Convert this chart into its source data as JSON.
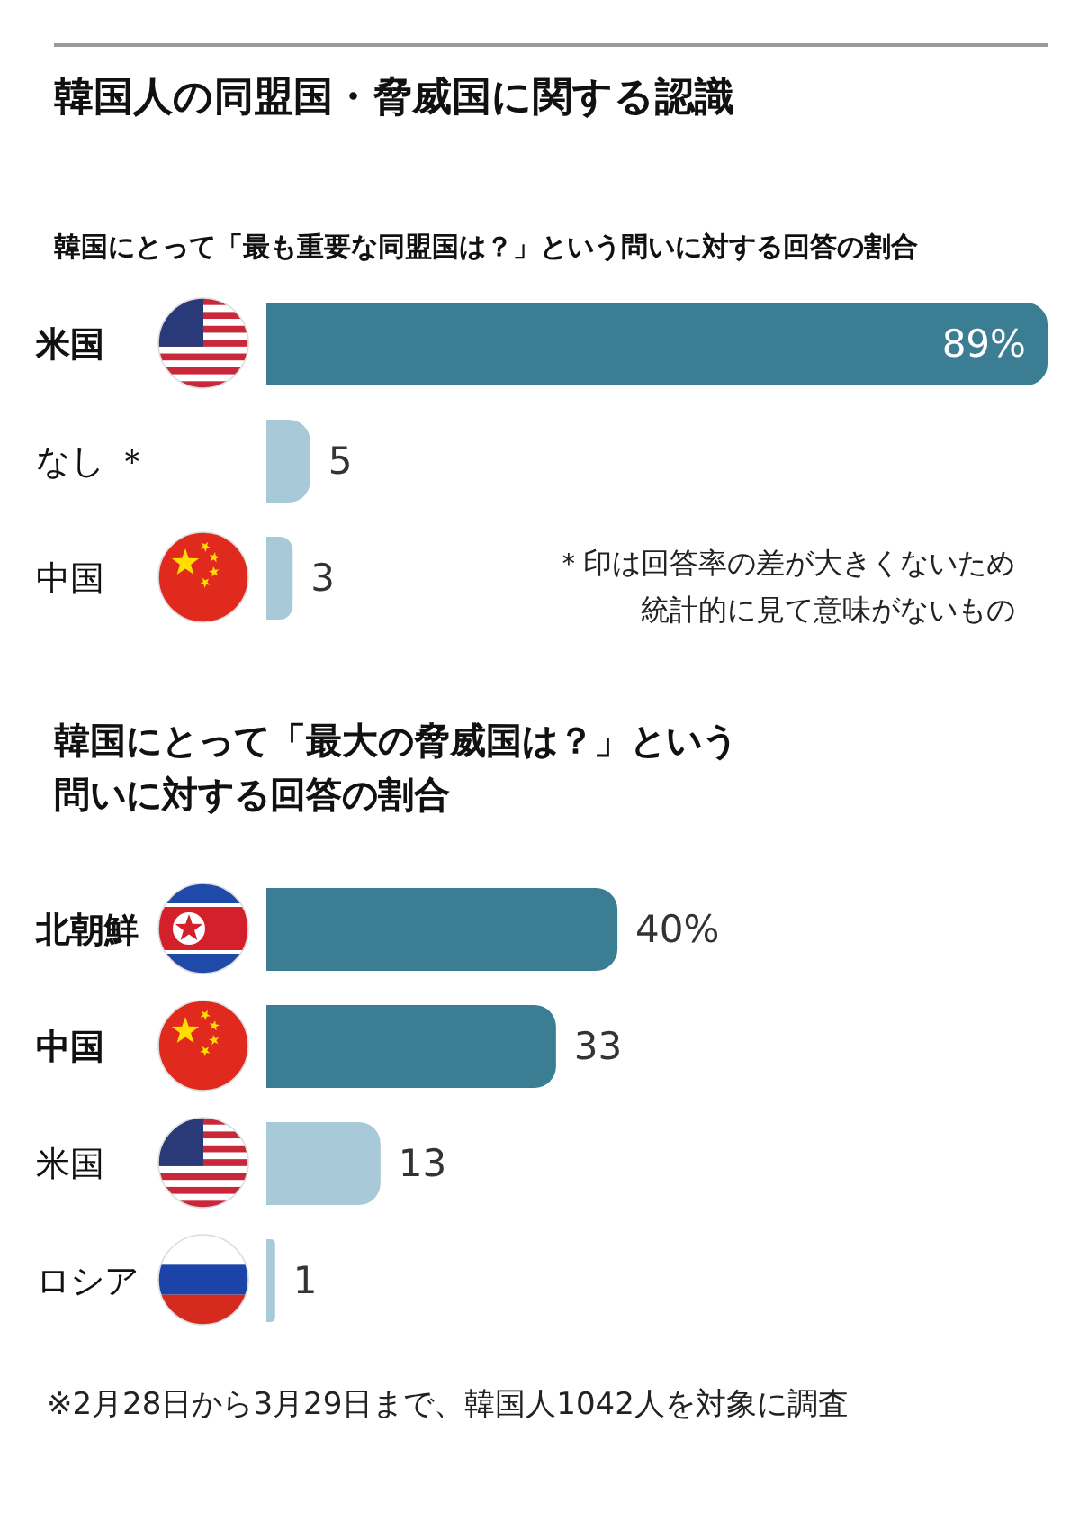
{
  "chart_data": [
    {
      "type": "bar",
      "orientation": "horizontal",
      "title": "韓国人の同盟国・脅威国に関する認識",
      "subtitle": "韓国にとって「最も重要な同盟国は？」という問いに対する回答の割合",
      "categories": [
        "米国",
        "なし ＊",
        "中国"
      ],
      "values": [
        89,
        5,
        3
      ],
      "colors": [
        "#3b7d93",
        "#a8cad8",
        "#a8cad8"
      ],
      "value_labels": [
        "89%",
        "5",
        "3"
      ],
      "annotations": [
        "＊印は回答率の差が大きくないため統計的に見て意味がないもの"
      ]
    },
    {
      "type": "bar",
      "orientation": "horizontal",
      "title": "韓国にとって「最大の脅威国は？」という問いに対する回答の割合",
      "categories": [
        "北朝鮮",
        "中国",
        "米国",
        "ロシア"
      ],
      "values": [
        40,
        33,
        13,
        1
      ],
      "colors": [
        "#3b7d93",
        "#3b7d93",
        "#a8cad8",
        "#a8cad8"
      ],
      "value_labels": [
        "40%",
        "33",
        "13",
        "1"
      ],
      "annotations": [
        "※2月28日から3月29日まで、韓国人1042人を対象に調査"
      ]
    }
  ]
}
